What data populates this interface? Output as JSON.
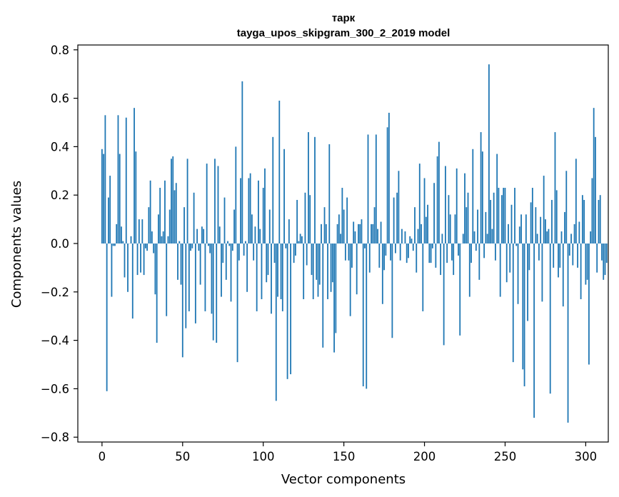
{
  "chart_data": {
    "type": "bar",
    "title": "тарк",
    "subtitle": "tayga_upos_skipgram_300_2_2019 model",
    "xlabel": "Vector components",
    "ylabel": "Components values",
    "xlim": [
      -15,
      314
    ],
    "ylim": [
      -0.82,
      0.82
    ],
    "xticks": [
      0,
      50,
      100,
      150,
      200,
      250,
      300
    ],
    "xtick_labels": [
      "0",
      "50",
      "100",
      "150",
      "200",
      "250",
      "300"
    ],
    "yticks": [
      -0.8,
      -0.6,
      -0.4,
      -0.2,
      0.0,
      0.2,
      0.4,
      0.6,
      0.8
    ],
    "ytick_labels": [
      "−0.8",
      "−0.6",
      "−0.4",
      "−0.2",
      "0.0",
      "0.2",
      "0.4",
      "0.6",
      "0.8"
    ],
    "bar_color": "#1f77b4",
    "values": [
      0.39,
      0.37,
      0.53,
      -0.61,
      0.19,
      0.28,
      -0.22,
      -0.01,
      -0.01,
      0.08,
      0.53,
      0.37,
      0.07,
      0.01,
      -0.14,
      0.52,
      -0.2,
      0.0,
      0.03,
      -0.31,
      0.56,
      0.38,
      -0.13,
      0.1,
      -0.12,
      0.1,
      -0.13,
      -0.02,
      -0.03,
      0.15,
      0.26,
      0.05,
      -0.04,
      -0.21,
      -0.41,
      0.12,
      0.23,
      0.03,
      0.05,
      0.26,
      -0.3,
      0.03,
      0.14,
      0.35,
      0.36,
      0.22,
      0.25,
      -0.15,
      0.01,
      -0.17,
      -0.47,
      0.15,
      -0.35,
      0.35,
      -0.28,
      -0.03,
      -0.02,
      0.21,
      -0.33,
      0.06,
      -0.03,
      -0.17,
      0.07,
      0.06,
      -0.28,
      0.33,
      -0.01,
      -0.04,
      -0.29,
      -0.4,
      0.35,
      -0.41,
      0.32,
      0.07,
      -0.22,
      -0.08,
      0.19,
      -0.15,
      0.01,
      -0.01,
      -0.24,
      -0.03,
      0.14,
      0.4,
      -0.49,
      -0.07,
      0.27,
      0.67,
      -0.05,
      0.01,
      -0.2,
      0.27,
      0.29,
      0.12,
      -0.07,
      0.07,
      -0.28,
      0.26,
      0.06,
      -0.23,
      0.23,
      0.31,
      -0.16,
      -0.13,
      0.14,
      -0.29,
      0.44,
      -0.08,
      -0.65,
      -0.22,
      0.59,
      -0.23,
      -0.28,
      0.39,
      -0.02,
      -0.56,
      0.1,
      -0.54,
      0.0,
      -0.08,
      -0.05,
      0.18,
      0.01,
      0.04,
      0.03,
      -0.23,
      0.21,
      -0.09,
      0.46,
      0.2,
      -0.13,
      -0.23,
      0.44,
      -0.15,
      -0.22,
      -0.17,
      0.08,
      -0.43,
      0.15,
      0.08,
      -0.23,
      0.41,
      -0.2,
      -0.16,
      -0.45,
      -0.37,
      0.08,
      0.12,
      0.04,
      0.23,
      0.14,
      -0.07,
      0.19,
      -0.07,
      -0.3,
      -0.1,
      0.09,
      0.05,
      -0.21,
      0.08,
      0.08,
      0.1,
      -0.59,
      -0.02,
      -0.6,
      0.45,
      -0.12,
      0.08,
      0.08,
      0.15,
      0.45,
      0.06,
      -0.1,
      0.09,
      -0.25,
      -0.11,
      -0.05,
      0.48,
      0.54,
      -0.07,
      -0.39,
      0.19,
      -0.04,
      0.21,
      0.3,
      -0.07,
      0.06,
      0.0,
      0.05,
      -0.08,
      -0.06,
      0.03,
      0.02,
      -0.03,
      0.15,
      -0.12,
      0.06,
      0.33,
      0.08,
      -0.28,
      0.27,
      0.11,
      0.16,
      -0.08,
      -0.08,
      -0.02,
      0.25,
      -0.1,
      0.36,
      0.42,
      -0.13,
      0.04,
      -0.42,
      0.32,
      -0.08,
      0.2,
      0.12,
      -0.07,
      -0.13,
      0.12,
      0.31,
      -0.05,
      -0.38,
      0.0,
      0.04,
      0.29,
      0.15,
      0.21,
      -0.22,
      -0.08,
      0.39,
      0.05,
      -0.03,
      0.14,
      -0.15,
      0.46,
      0.38,
      -0.06,
      0.13,
      0.04,
      0.74,
      0.18,
      0.06,
      0.21,
      -0.07,
      0.37,
      0.23,
      -0.22,
      0.2,
      0.23,
      0.23,
      -0.16,
      0.08,
      -0.12,
      0.16,
      -0.49,
      0.23,
      -0.01,
      -0.25,
      0.07,
      0.12,
      -0.52,
      -0.59,
      0.12,
      -0.32,
      -0.11,
      0.17,
      0.23,
      -0.72,
      0.15,
      0.04,
      -0.07,
      0.11,
      -0.24,
      0.28,
      0.1,
      0.05,
      0.06,
      -0.62,
      0.18,
      -0.1,
      0.46,
      0.22,
      -0.14,
      -0.1,
      0.05,
      -0.26,
      0.13,
      0.3,
      -0.74,
      -0.05,
      0.04,
      -0.09,
      0.08,
      0.35,
      -0.1,
      0.09,
      -0.23,
      0.2,
      0.18,
      -0.17,
      -0.15,
      -0.5,
      0.05,
      0.27,
      0.56,
      0.44,
      -0.12,
      0.18,
      0.2,
      -0.07,
      -0.15,
      -0.13,
      -0.08
    ]
  }
}
